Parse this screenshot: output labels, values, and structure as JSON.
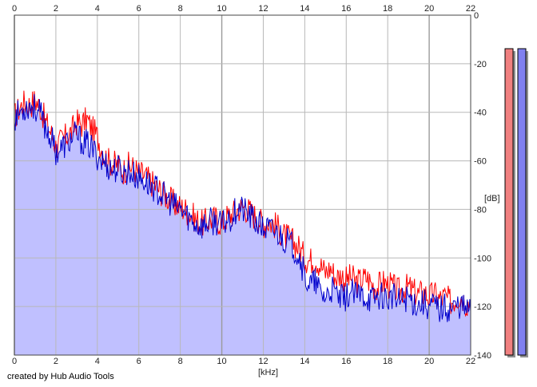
{
  "credit": "created by Hub Audio Tools",
  "colors": {
    "background": "#ffffff",
    "fill": "#c0c0ff",
    "red_series": "#ff0000",
    "blue_series": "#0000cc",
    "grid": "#b8b8b8",
    "meter_red": "#f08080",
    "meter_blue": "#8080f0"
  },
  "chart_data": {
    "type": "line",
    "xlabel": "[kHz]",
    "ylabel": "[dB]",
    "xlim": [
      0,
      22
    ],
    "ylim": [
      -140,
      0
    ],
    "x_ticks": [
      "0",
      "2",
      "4",
      "6",
      "8",
      "10",
      "12",
      "14",
      "16",
      "18",
      "20",
      "22"
    ],
    "y_ticks": [
      "0",
      "-20",
      "-40",
      "-60",
      "-80",
      "-100",
      "-120",
      "-140"
    ],
    "grid": true,
    "x": [
      0,
      0.25,
      0.5,
      0.75,
      1,
      1.25,
      1.5,
      1.75,
      2,
      2.25,
      2.5,
      2.75,
      3,
      3.25,
      3.5,
      3.75,
      4,
      4.25,
      4.5,
      4.75,
      5,
      5.25,
      5.5,
      5.75,
      6,
      6.25,
      6.5,
      6.75,
      7,
      7.25,
      7.5,
      7.75,
      8,
      8.25,
      8.5,
      8.75,
      9,
      9.25,
      9.5,
      9.75,
      10,
      10.25,
      10.5,
      10.75,
      11,
      11.25,
      11.5,
      11.75,
      12,
      12.25,
      12.5,
      12.75,
      13,
      13.25,
      13.5,
      13.75,
      14,
      14.25,
      14.5,
      14.75,
      15,
      15.25,
      15.5,
      15.75,
      16,
      16.25,
      16.5,
      16.75,
      17,
      17.25,
      17.5,
      17.75,
      18,
      18.25,
      18.5,
      18.75,
      19,
      19.25,
      19.5,
      19.75,
      20,
      20.25,
      20.5,
      20.75,
      21,
      21.25,
      21.5,
      21.75,
      22
    ],
    "series": [
      {
        "color": "#ff0000",
        "values": [
          -42,
          -38,
          -36,
          -37,
          -35,
          -38,
          -44,
          -48,
          -54,
          -52,
          -50,
          -48,
          -44,
          -45,
          -43,
          -47,
          -50,
          -56,
          -60,
          -61,
          -62,
          -64,
          -62,
          -63,
          -65,
          -66,
          -68,
          -70,
          -72,
          -74,
          -76,
          -78,
          -79,
          -80,
          -82,
          -84,
          -86,
          -85,
          -84,
          -84,
          -86,
          -83,
          -82,
          -80,
          -79,
          -80,
          -82,
          -84,
          -86,
          -85,
          -86,
          -88,
          -91,
          -92,
          -94,
          -96,
          -100,
          -101,
          -100,
          -103,
          -106,
          -104,
          -108,
          -107,
          -109,
          -108,
          -110,
          -109,
          -108,
          -111,
          -112,
          -110,
          -111,
          -112,
          -114,
          -113,
          -112,
          -114,
          -115,
          -114,
          -116,
          -115,
          -117,
          -116,
          -118,
          -117,
          -115,
          -118,
          -119
        ]
      },
      {
        "color": "#0000cc",
        "values": [
          -42,
          -40,
          -38,
          -37,
          -38,
          -41,
          -46,
          -50,
          -56,
          -55,
          -53,
          -51,
          -49,
          -52,
          -53,
          -55,
          -58,
          -60,
          -62,
          -64,
          -63,
          -65,
          -64,
          -66,
          -67,
          -68,
          -70,
          -71,
          -73,
          -75,
          -77,
          -79,
          -80,
          -82,
          -84,
          -86,
          -87,
          -86,
          -85,
          -85,
          -87,
          -84,
          -83,
          -79,
          -80,
          -82,
          -84,
          -86,
          -88,
          -88,
          -89,
          -90,
          -92,
          -94,
          -96,
          -99,
          -108,
          -111,
          -110,
          -114,
          -116,
          -113,
          -115,
          -117,
          -116,
          -114,
          -116,
          -115,
          -116,
          -117,
          -116,
          -115,
          -117,
          -116,
          -118,
          -117,
          -116,
          -118,
          -119,
          -118,
          -120,
          -119,
          -121,
          -120,
          -121,
          -120,
          -119,
          -121,
          -122
        ]
      }
    ],
    "meters": [
      {
        "color": "#f08080"
      },
      {
        "color": "#8080f0"
      }
    ]
  }
}
